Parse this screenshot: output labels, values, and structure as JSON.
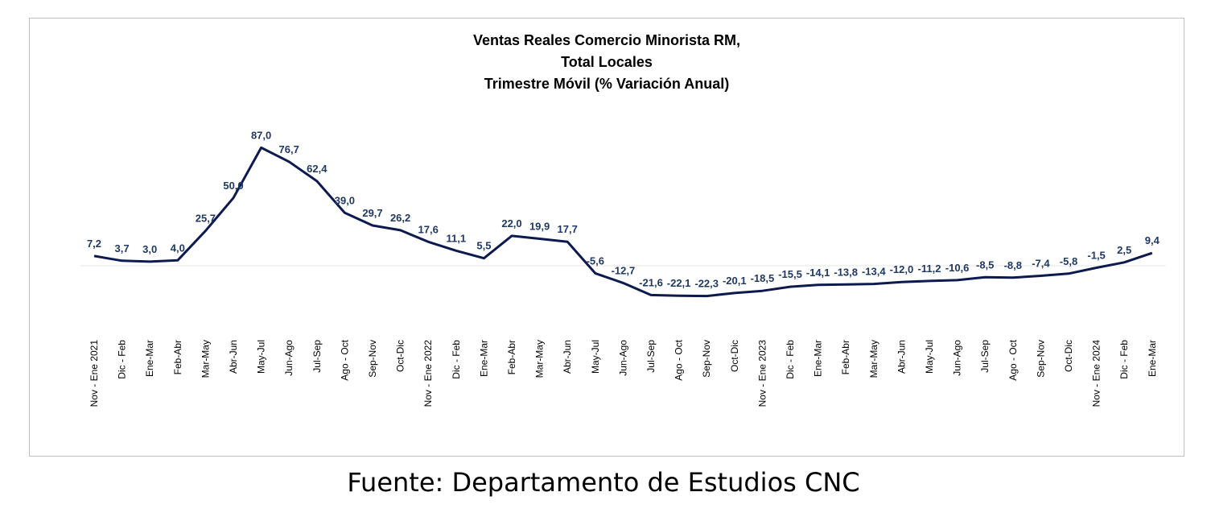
{
  "chart_data": {
    "type": "line",
    "title_lines": [
      "Ventas Reales Comercio Minorista RM,",
      "Total Locales",
      "Trimestre Móvil (% Variación Anual)"
    ],
    "xlabel": "",
    "ylabel": "",
    "ylim": [
      -30,
      95
    ],
    "grid": false,
    "line_color": "#0d1a4f",
    "label_color": "#1f3864",
    "baseline": 0,
    "categories": [
      "Nov - Ene 2021",
      "Dic - Feb",
      "Ene-Mar",
      "Feb-Abr",
      "Mar-May",
      "Abr-Jun",
      "May-Jul",
      "Jun-Ago",
      "Jul-Sep",
      "Ago - Oct",
      "Sep-Nov",
      "Oct-Dic",
      "Nov - Ene 2022",
      "Dic - Feb",
      "Ene-Mar",
      "Feb-Abr",
      "Mar-May",
      "Abr-Jun",
      "May-Jul",
      "Jun-Ago",
      "Jul-Sep",
      "Ago - Oct",
      "Sep-Nov",
      "Oct-Dic",
      "Nov - Ene 2023",
      "Dic - Feb",
      "Ene-Mar",
      "Feb-Abr",
      "Mar-May",
      "Abr-Jun",
      "May-Jul",
      "Jun-Ago",
      "Jul-Sep",
      "Ago - Oct",
      "Sep-Nov",
      "Oct-Dic",
      "Nov - Ene 2024",
      "Dic - Feb",
      "Ene-Mar"
    ],
    "values": [
      7.2,
      3.7,
      3.0,
      4.0,
      25.7,
      50.0,
      87.0,
      76.7,
      62.4,
      39.0,
      29.7,
      26.2,
      17.6,
      11.1,
      5.5,
      22.0,
      19.9,
      17.7,
      -5.6,
      -12.7,
      -21.6,
      -22.1,
      -22.3,
      -20.1,
      -18.5,
      -15.5,
      -14.1,
      -13.8,
      -13.4,
      -12.0,
      -11.2,
      -10.6,
      -8.5,
      -8.8,
      -7.4,
      -5.8,
      -1.5,
      2.5,
      9.4
    ],
    "value_labels": [
      "7,2",
      "3,7",
      "3,0",
      "4,0",
      "25,7",
      "50,0",
      "87,0",
      "76,7",
      "62,4",
      "39,0",
      "29,7",
      "26,2",
      "17,6",
      "11,1",
      "5,5",
      "22,0",
      "19,9",
      "17,7",
      "-5,6",
      "-12,7",
      "-21,6",
      "-22,1",
      "-22,3",
      "-20,1",
      "-18,5",
      "-15,5",
      "-14,1",
      "-13,8",
      "-13,4",
      "-12,0",
      "-11,2",
      "-10,6",
      "-8,5",
      "-8,8",
      "-7,4",
      "-5,8",
      "-1,5",
      "2,5",
      "9,4"
    ]
  },
  "source": "Fuente: Departamento de Estudios CNC"
}
